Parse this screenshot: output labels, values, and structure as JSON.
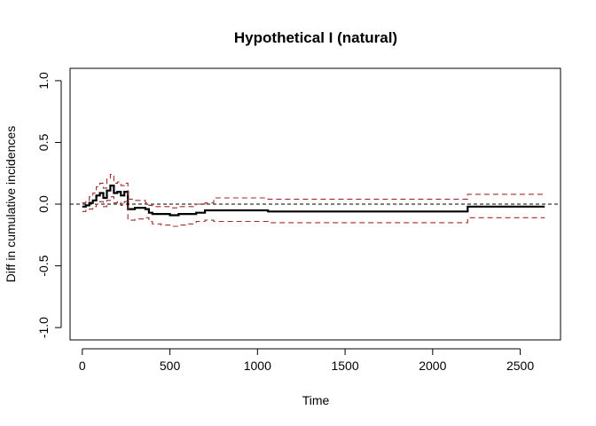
{
  "chart_data": {
    "type": "line",
    "title": "Hypothetical I (natural)",
    "xlabel": "Time",
    "ylabel": "Diff in cumulative incidences",
    "xlim": [
      -70,
      2730
    ],
    "ylim": [
      -1.1,
      1.1
    ],
    "xticks": [
      0,
      500,
      1000,
      1500,
      2000,
      2500
    ],
    "yticks": [
      -1.0,
      -0.5,
      0.0,
      0.5,
      1.0
    ],
    "xtick_labels": [
      "0",
      "500",
      "1000",
      "1500",
      "2000",
      "2500"
    ],
    "ytick_labels": [
      "-1.0",
      "-0.5",
      "0.0",
      "0.5",
      "1.0"
    ],
    "reference_line": {
      "y": 0,
      "style": "dashed",
      "color": "#000000"
    },
    "colors": {
      "estimate": "#000000",
      "ci": "#a52a2a"
    },
    "grid": false,
    "series": [
      {
        "role": "estimate",
        "x": [
          0,
          20,
          40,
          60,
          80,
          100,
          120,
          140,
          160,
          180,
          200,
          220,
          240,
          260,
          300,
          360,
          380,
          400,
          450,
          500,
          550,
          600,
          650,
          700,
          750,
          1060,
          1280,
          2200,
          2640
        ],
        "y": [
          -0.02,
          -0.01,
          0.01,
          0.03,
          0.07,
          0.09,
          0.05,
          0.11,
          0.15,
          0.09,
          0.1,
          0.07,
          0.1,
          -0.04,
          -0.03,
          -0.04,
          -0.07,
          -0.08,
          -0.08,
          -0.09,
          -0.08,
          -0.08,
          -0.07,
          -0.05,
          -0.05,
          -0.06,
          -0.06,
          -0.02,
          -0.02
        ]
      },
      {
        "role": "upper",
        "x": [
          0,
          20,
          40,
          60,
          80,
          100,
          120,
          140,
          160,
          180,
          200,
          220,
          240,
          260,
          300,
          360,
          380,
          400,
          450,
          500,
          550,
          600,
          650,
          700,
          750,
          1060,
          1280,
          2200,
          2640
        ],
        "y": [
          0.01,
          0.03,
          0.06,
          0.09,
          0.14,
          0.17,
          0.13,
          0.21,
          0.24,
          0.17,
          0.18,
          0.15,
          0.17,
          0.04,
          0.03,
          0.01,
          -0.01,
          -0.02,
          -0.02,
          -0.03,
          -0.02,
          -0.02,
          0.0,
          0.01,
          0.05,
          0.04,
          0.04,
          0.08,
          0.08
        ]
      },
      {
        "role": "lower",
        "x": [
          0,
          20,
          40,
          60,
          80,
          100,
          120,
          140,
          160,
          180,
          200,
          220,
          240,
          260,
          300,
          360,
          380,
          400,
          450,
          500,
          550,
          600,
          650,
          700,
          750,
          1060,
          1280,
          2200,
          2640
        ],
        "y": [
          -0.06,
          -0.05,
          -0.04,
          -0.02,
          0.0,
          0.02,
          -0.02,
          0.03,
          0.06,
          0.01,
          0.02,
          -0.01,
          0.02,
          -0.13,
          -0.12,
          -0.11,
          -0.14,
          -0.16,
          -0.17,
          -0.18,
          -0.17,
          -0.16,
          -0.14,
          -0.13,
          -0.14,
          -0.15,
          -0.15,
          -0.11,
          -0.11
        ]
      }
    ]
  }
}
